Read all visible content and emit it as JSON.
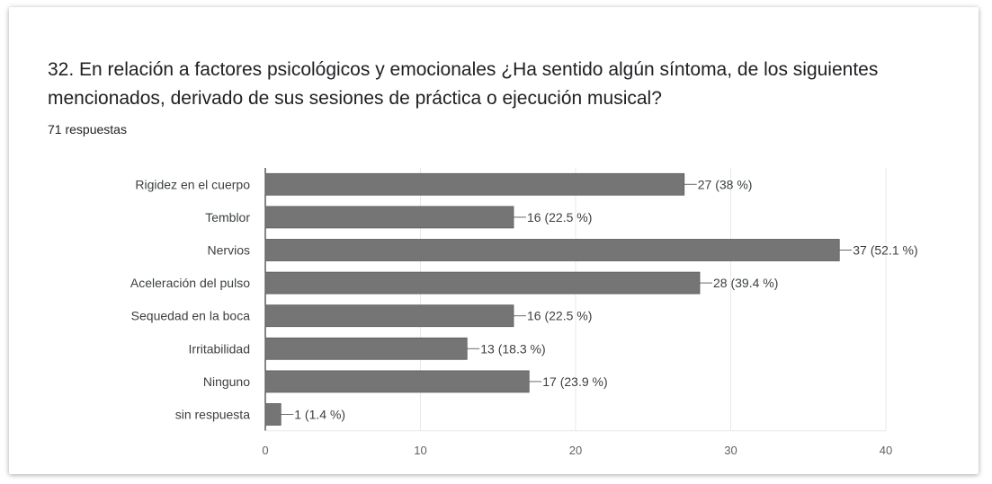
{
  "question": {
    "title": "32. En relación a factores psicológicos y emocionales ¿Ha sentido algún síntoma, de los siguientes mencionados, derivado de sus sesiones de práctica o ejecución musical?",
    "responses": "71 respuestas"
  },
  "chart_data": {
    "type": "bar",
    "orientation": "horizontal",
    "categories": [
      "Rigidez en el cuerpo",
      "Temblor",
      "Nervios",
      "Aceleración del pulso",
      "Sequedad en la boca",
      "Irritabilidad",
      "Ninguno",
      "sin respuesta"
    ],
    "values": [
      27,
      16,
      37,
      28,
      16,
      13,
      17,
      1
    ],
    "data_labels": [
      "27 (38 %)",
      "16 (22.5 %)",
      "37 (52.1 %)",
      "28 (39.4 %)",
      "16 (22.5 %)",
      "13 (18.3 %)",
      "17 (23.9 %)",
      "1 (1.4 %)"
    ],
    "xlim": [
      0,
      40
    ],
    "xticks": [
      0,
      10,
      20,
      30,
      40
    ],
    "grid": true,
    "bar_color": "#757575"
  }
}
